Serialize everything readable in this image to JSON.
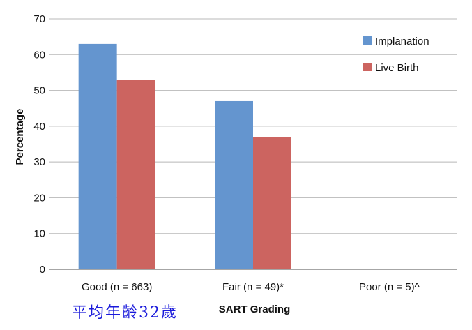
{
  "chart_data": {
    "type": "bar",
    "categories": [
      "Good (n = 663)",
      "Fair (n = 49)*",
      "Poor (n = 5)^"
    ],
    "series": [
      {
        "name": "Implanation",
        "values": [
          63,
          47,
          0
        ],
        "color": "#6495cf"
      },
      {
        "name": "Live Birth",
        "values": [
          53,
          37,
          0
        ],
        "color": "#cc6460"
      }
    ],
    "xlabel": "SART Grading",
    "ylabel": "Percentage",
    "ylim": [
      0,
      70
    ],
    "yticks": [
      0,
      10,
      20,
      30,
      40,
      50,
      60,
      70
    ],
    "grid": true,
    "legend_position": "top-right"
  },
  "annotation": "平均年齡32歲"
}
